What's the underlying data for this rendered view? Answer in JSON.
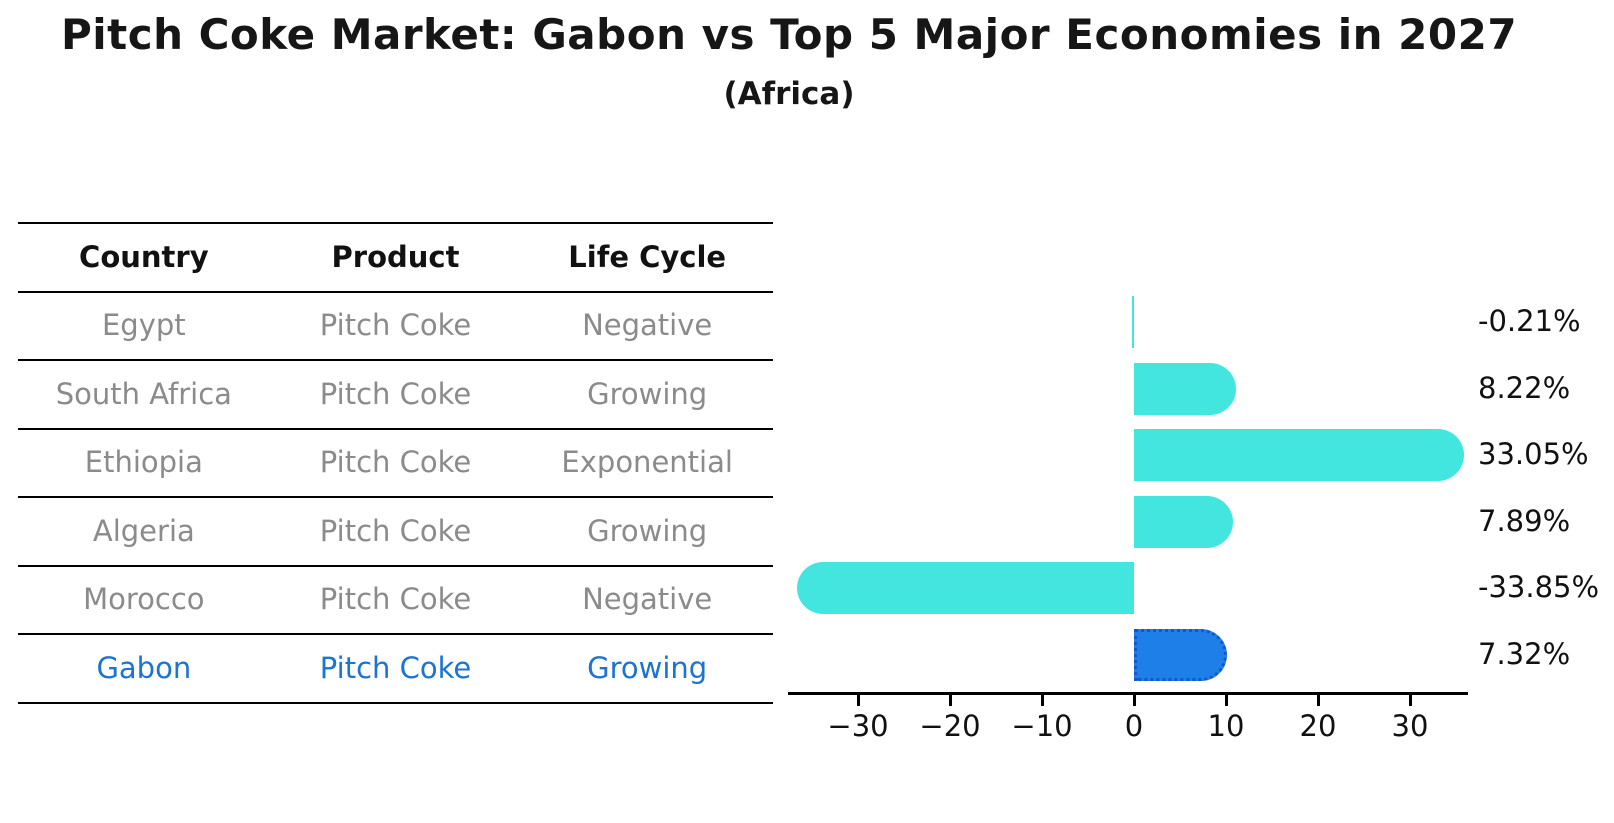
{
  "title": "Pitch Coke Market: Gabon vs Top 5 Major Economies in 2027",
  "subtitle": "(Africa)",
  "table": {
    "columns": [
      "Country",
      "Product",
      "Life Cycle"
    ],
    "rows": [
      {
        "country": "Egypt",
        "product": "Pitch Coke",
        "life_cycle": "Negative",
        "highlight": false
      },
      {
        "country": "South Africa",
        "product": "Pitch Coke",
        "life_cycle": "Growing",
        "highlight": false
      },
      {
        "country": "Ethiopia",
        "product": "Pitch Coke",
        "life_cycle": "Exponential",
        "highlight": false
      },
      {
        "country": "Algeria",
        "product": "Pitch Coke",
        "life_cycle": "Growing",
        "highlight": false
      },
      {
        "country": "Morocco",
        "product": "Pitch Coke",
        "life_cycle": "Negative",
        "highlight": false
      },
      {
        "country": "Gabon",
        "product": "Pitch Coke",
        "life_cycle": "Growing",
        "highlight": true
      }
    ]
  },
  "chart_data": {
    "type": "bar",
    "orientation": "horizontal",
    "title": "Pitch Coke Market: Gabon vs Top 5 Major Economies in 2027 (Africa)",
    "categories": [
      "Egypt",
      "South Africa",
      "Ethiopia",
      "Algeria",
      "Morocco",
      "Gabon"
    ],
    "values": [
      -0.21,
      8.22,
      33.05,
      7.89,
      -33.85,
      7.32
    ],
    "value_labels": [
      "-0.21%",
      "8.22%",
      "33.05%",
      "7.89%",
      "-33.85%",
      "7.32%"
    ],
    "x_ticks": [
      -30,
      -20,
      -10,
      0,
      10,
      20,
      30
    ],
    "x_tick_labels": [
      "−30",
      "−20",
      "−10",
      "0",
      "10",
      "20",
      "30"
    ],
    "xlim": [
      -37.6,
      36.3
    ],
    "xlabel": "",
    "ylabel": "",
    "grid": false,
    "legend": false,
    "highlight_index": 5
  },
  "colors": {
    "bar": "#43e6df",
    "highlight_bar": "#1e7fe8",
    "highlight_edge": "#1556cb",
    "highlight_text": "#1b74d1",
    "muted_text": "#8b8b8b"
  }
}
